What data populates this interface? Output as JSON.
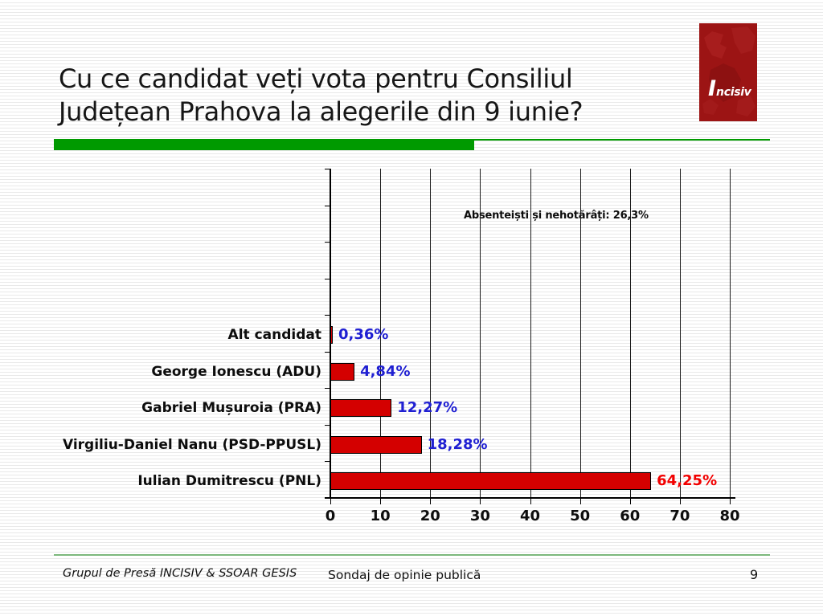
{
  "slide": {
    "title": "Cu ce candidat veți vota pentru Consiliul\nJudețean Prahova la alegerile din 9 iunie?",
    "logo": {
      "initial": "I",
      "rest": "ncisiv"
    },
    "footer_left": "Grupul de Presă INCISIV & SSOAR GESIS",
    "footer_center": "Sondaj de opinie publică",
    "page_number": "9"
  },
  "colors": {
    "accent_green": "#009a00",
    "footer_line_green": "#7cb87c",
    "bar_fill": "#d40000",
    "logo_red": "#9c1414",
    "logo_map_red": "#b02525"
  },
  "chart_data": {
    "type": "bar",
    "orientation": "horizontal",
    "title": "",
    "categories": [
      "Alt candidat",
      "George Ionescu (ADU)",
      "Gabriel Mușuroia (PRA)",
      "Virgiliu-Daniel Nanu (PSD-PPUSL)",
      "Iulian Dumitrescu (PNL)"
    ],
    "values": [
      0.36,
      4.84,
      12.27,
      18.28,
      64.25
    ],
    "value_labels": [
      "0,36%",
      "4,84%",
      "12,27%",
      "18,28%",
      "64,25%"
    ],
    "value_label_colors": [
      "#2020d2",
      "#2020d2",
      "#2020d2",
      "#2020d2",
      "#f20000"
    ],
    "annotation": "Absenteiști  și  nehotărâți:  26,3%",
    "x_ticks": [
      0,
      10,
      20,
      30,
      40,
      50,
      60,
      70,
      80
    ],
    "xlim": [
      0,
      80
    ],
    "grid": true,
    "legend": false
  }
}
